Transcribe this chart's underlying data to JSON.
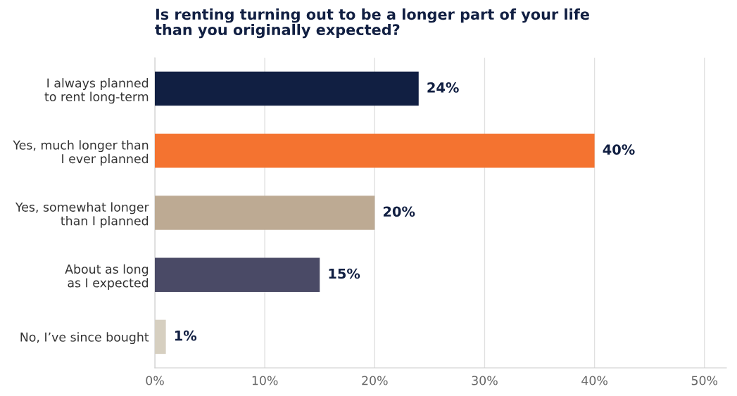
{
  "chart_data": {
    "type": "bar",
    "orientation": "horizontal",
    "title": "Is renting turning out to be a longer part of your life\nthan you originally expected?",
    "categories": [
      "I always planned\nto rent long-term",
      "Yes, much longer than\nI ever planned",
      "Yes, somewhat longer\nthan I planned",
      "About as long\nas I expected",
      "No, I’ve since bought"
    ],
    "values": [
      24,
      40,
      20,
      15,
      1
    ],
    "colors": [
      "#111f42",
      "#f47330",
      "#bdaa93",
      "#4a4a66",
      "#d6cfc0"
    ],
    "value_labels": [
      "24%",
      "40%",
      "20%",
      "15%",
      "1%"
    ],
    "xlim": [
      0,
      52
    ],
    "xticks": [
      {
        "value": 0,
        "label": "0%"
      },
      {
        "value": 10,
        "label": "10%"
      },
      {
        "value": 20,
        "label": "20%"
      },
      {
        "value": 30,
        "label": "30%"
      },
      {
        "value": 40,
        "label": "40%"
      },
      {
        "value": 50,
        "label": "50%"
      }
    ],
    "grid": "x",
    "legend": false
  }
}
